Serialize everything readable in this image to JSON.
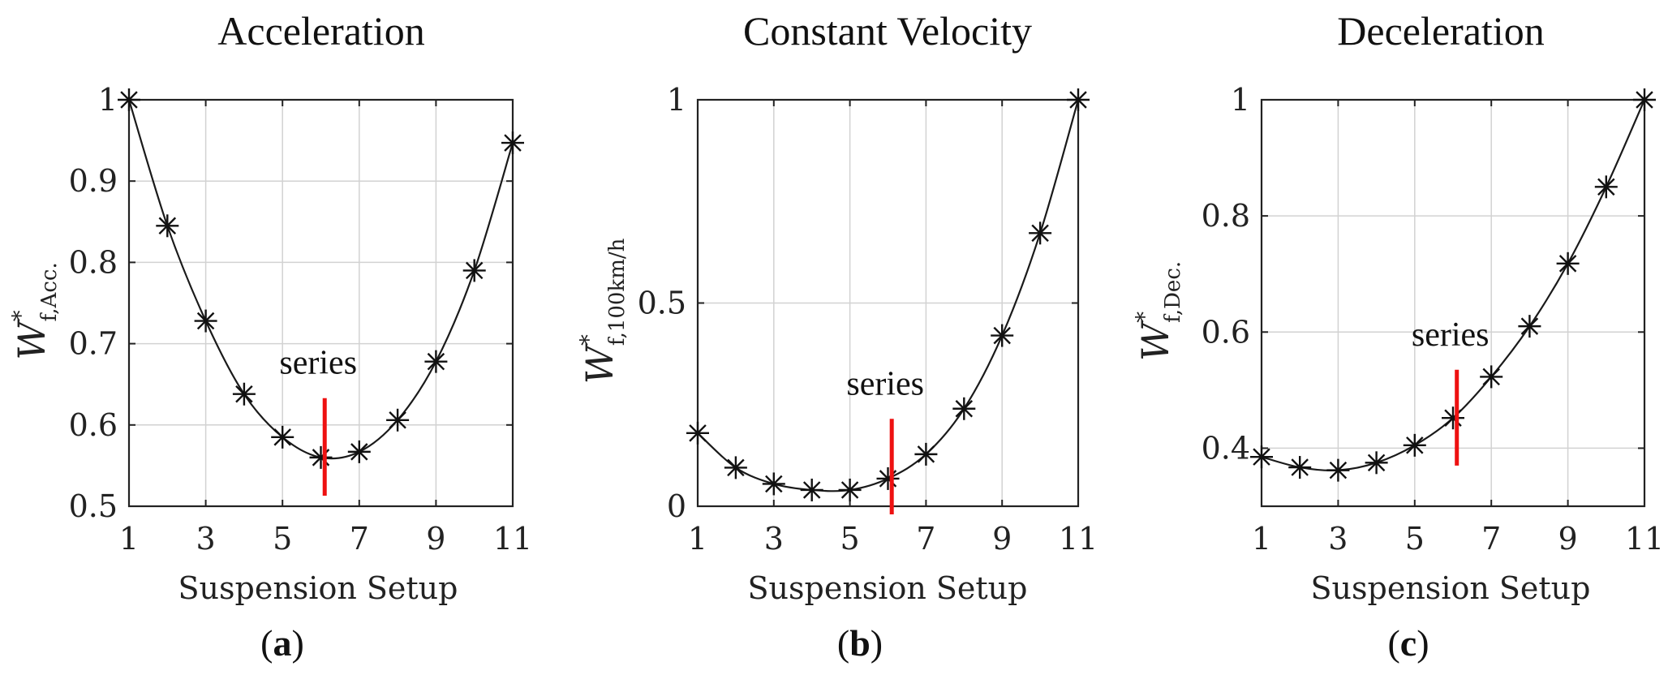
{
  "captions": [
    "(a)",
    "(b)",
    "(c)"
  ],
  "colors": {
    "series_marker": "#ee1111",
    "curve": "#1a1a1a",
    "grid": "#d2d2d2"
  },
  "chart_data": [
    {
      "type": "line",
      "title": "Acceleration",
      "xlabel": "Suspension Setup",
      "ylabel": {
        "main": "W",
        "sup": "*",
        "sub": "f,Acc."
      },
      "xlim": [
        1,
        11
      ],
      "ylim": [
        0.5,
        1
      ],
      "xticks": [
        1,
        3,
        5,
        7,
        9,
        11
      ],
      "yticks": [
        0.5,
        0.6,
        0.7,
        0.8,
        0.9,
        1
      ],
      "ytick_labels": [
        "0.5",
        "0.6",
        "0.7",
        "0.8",
        "0.9",
        "1"
      ],
      "x": [
        1,
        2,
        3,
        4,
        5,
        6,
        7,
        8,
        9,
        10,
        11
      ],
      "y": [
        1.0,
        0.845,
        0.728,
        0.638,
        0.585,
        0.56,
        0.567,
        0.606,
        0.678,
        0.79,
        0.947
      ],
      "annotation": {
        "text": "series",
        "x": 6.1,
        "y_range": [
          0.513,
          0.633
        ]
      }
    },
    {
      "type": "line",
      "title": "Constant Velocity",
      "xlabel": "Suspension Setup",
      "ylabel": {
        "main": "W",
        "sup": "*",
        "sub": "f,100km/h"
      },
      "xlim": [
        1,
        11
      ],
      "ylim": [
        0,
        1
      ],
      "xticks": [
        1,
        3,
        5,
        7,
        9,
        11
      ],
      "yticks": [
        0,
        0.5,
        1
      ],
      "ytick_labels": [
        "0",
        "0.5",
        "1"
      ],
      "x": [
        1,
        2,
        3,
        4,
        5,
        6,
        7,
        8,
        9,
        10,
        11
      ],
      "y": [
        0.18,
        0.095,
        0.055,
        0.04,
        0.04,
        0.068,
        0.128,
        0.24,
        0.42,
        0.672,
        1.0
      ],
      "annotation": {
        "text": "series",
        "x": 6.1,
        "y_range": [
          -0.02,
          0.215
        ]
      }
    },
    {
      "type": "line",
      "title": "Deceleration",
      "xlabel": "Suspension Setup",
      "ylabel": {
        "main": "W",
        "sup": "*",
        "sub": "f,Dec."
      },
      "xlim": [
        1,
        11
      ],
      "ylim": [
        0.3,
        1
      ],
      "xticks": [
        1,
        3,
        5,
        7,
        9,
        11
      ],
      "yticks": [
        0.4,
        0.6,
        0.8,
        1
      ],
      "ytick_labels": [
        "0.4",
        "0.6",
        "0.8",
        "1"
      ],
      "x": [
        1,
        2,
        3,
        4,
        5,
        6,
        7,
        8,
        9,
        10,
        11
      ],
      "y": [
        0.385,
        0.367,
        0.362,
        0.375,
        0.405,
        0.452,
        0.523,
        0.61,
        0.718,
        0.85,
        1.0
      ],
      "annotation": {
        "text": "series",
        "x": 6.1,
        "y_range": [
          0.37,
          0.535
        ]
      }
    }
  ]
}
